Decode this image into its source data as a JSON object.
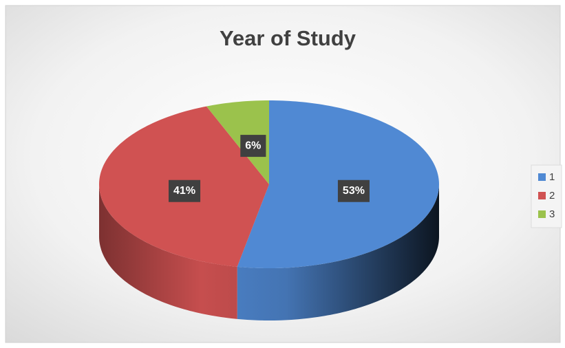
{
  "chart_data": {
    "type": "pie3d",
    "title": "Year of Study",
    "categories": [
      "1",
      "2",
      "3"
    ],
    "values": [
      53,
      41,
      6
    ],
    "value_labels": [
      "53%",
      "41%",
      "6%"
    ],
    "colors": [
      "#5089d3",
      "#d05252",
      "#9bc24c"
    ],
    "legend": "right"
  }
}
